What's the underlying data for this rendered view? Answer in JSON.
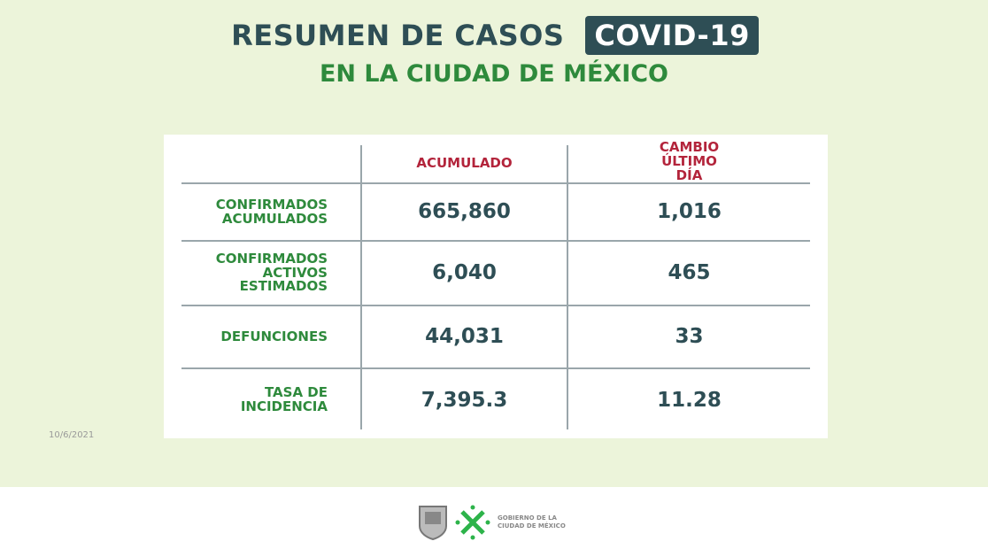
{
  "header": {
    "title": "RESUMEN DE CASOS",
    "badge": "COVID-19",
    "subtitle": "EN LA CIUDAD DE MÉXICO"
  },
  "table": {
    "columns": [
      "",
      "ACUMULADO",
      "CAMBIO ÚLTIMO DÍA"
    ],
    "rows": [
      {
        "label": "CONFIRMADOS ACUMULADOS",
        "acumulado": "665,860",
        "cambio": "1,016"
      },
      {
        "label": "CONFIRMADOS ACTIVOS ESTIMADOS",
        "acumulado": "6,040",
        "cambio": "465"
      },
      {
        "label": "DEFUNCIONES",
        "acumulado": "44,031",
        "cambio": "33"
      },
      {
        "label": "TASA DE INCIDENCIA",
        "acumulado": "7,395.3",
        "cambio": "11.28"
      }
    ]
  },
  "date": "10/6/2021",
  "footer": {
    "logo_text_1": "GOBIERNO DE LA",
    "logo_text_2": "CIUDAD DE MÉXICO"
  },
  "colors": {
    "background": "#ecf4da",
    "title": "#2e4e55",
    "green": "#2e8a3c",
    "red": "#b3243b"
  }
}
